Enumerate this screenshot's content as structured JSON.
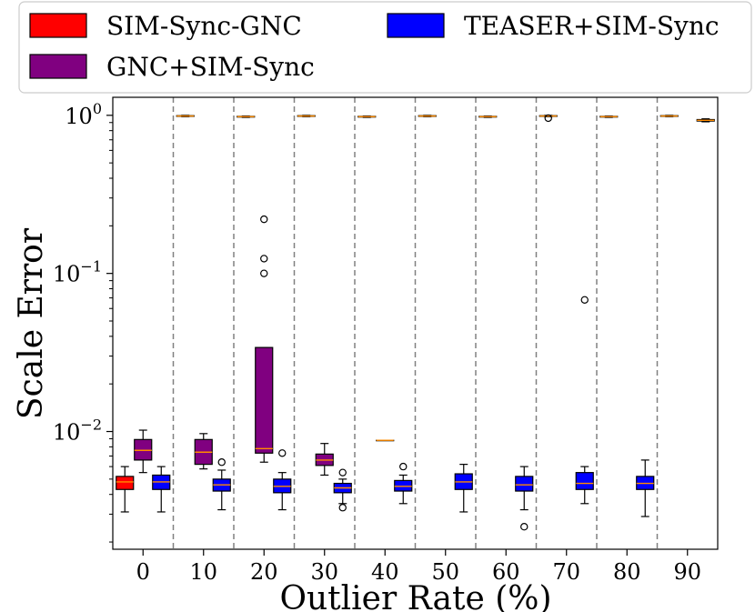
{
  "chart_data": {
    "type": "box",
    "xlabel": "Outlier Rate (%)",
    "ylabel": "Scale Error",
    "yscale": "log",
    "ylim": [
      0.0018,
      1.3
    ],
    "yticks": [
      {
        "value": 1,
        "base": "10",
        "exp": "0"
      },
      {
        "value": 0.1,
        "base": "10",
        "exp": "−1"
      },
      {
        "value": 0.01,
        "base": "10",
        "exp": "−2"
      }
    ],
    "categories": [
      "0",
      "10",
      "20",
      "30",
      "40",
      "50",
      "60",
      "70",
      "80",
      "90"
    ],
    "legend": {
      "placement": "top",
      "entries": [
        {
          "name": "SIM-Sync-GNC",
          "color": "#ff0000"
        },
        {
          "name": "GNC+SIM-Sync",
          "color": "#800080"
        },
        {
          "name": "TEASER+SIM-Sync",
          "color": "#0000ff"
        }
      ]
    },
    "median_color": "#ff8c00",
    "series": [
      {
        "name": "SIM-Sync-GNC",
        "color": "#ff0000",
        "boxes": [
          {
            "category": "0",
            "whislo": 0.0031,
            "q1": 0.0043,
            "med": 0.0048,
            "q3": 0.0052,
            "whishi": 0.006,
            "fliers": []
          },
          {
            "category": "10",
            "whislo": 0.98,
            "q1": 0.985,
            "med": 0.99,
            "q3": 0.995,
            "whishi": 1.0,
            "fliers": []
          },
          {
            "category": "20",
            "whislo": 0.97,
            "q1": 0.975,
            "med": 0.98,
            "q3": 0.985,
            "whishi": 0.99,
            "fliers": []
          },
          {
            "category": "30",
            "whislo": 0.98,
            "q1": 0.985,
            "med": 0.99,
            "q3": 0.995,
            "whishi": 1.0,
            "fliers": []
          },
          {
            "category": "40",
            "whislo": 0.97,
            "q1": 0.975,
            "med": 0.98,
            "q3": 0.985,
            "whishi": 0.99,
            "fliers": []
          },
          {
            "category": "50",
            "whislo": 0.98,
            "q1": 0.985,
            "med": 0.99,
            "q3": 0.995,
            "whishi": 1.0,
            "fliers": []
          },
          {
            "category": "60",
            "whislo": 0.97,
            "q1": 0.975,
            "med": 0.98,
            "q3": 0.985,
            "whishi": 0.99,
            "fliers": []
          },
          {
            "category": "70",
            "whislo": 0.98,
            "q1": 0.985,
            "med": 0.99,
            "q3": 0.995,
            "whishi": 1.0,
            "fliers": [
              0.96
            ]
          },
          {
            "category": "80",
            "whislo": 0.97,
            "q1": 0.975,
            "med": 0.98,
            "q3": 0.985,
            "whishi": 0.99,
            "fliers": []
          },
          {
            "category": "90",
            "whislo": 0.98,
            "q1": 0.985,
            "med": 0.99,
            "q3": 0.995,
            "whishi": 1.0,
            "fliers": []
          }
        ]
      },
      {
        "name": "GNC+SIM-Sync",
        "color": "#800080",
        "boxes": [
          {
            "category": "0",
            "whislo": 0.0055,
            "q1": 0.0066,
            "med": 0.0076,
            "q3": 0.0089,
            "whishi": 0.0102,
            "fliers": []
          },
          {
            "category": "10",
            "whislo": 0.0058,
            "q1": 0.0062,
            "med": 0.0074,
            "q3": 0.0089,
            "whishi": 0.0097,
            "fliers": []
          },
          {
            "category": "20",
            "whislo": 0.0064,
            "q1": 0.0073,
            "med": 0.0078,
            "q3": 0.034,
            "whishi": 0.034,
            "fliers": [
              0.1,
              0.124,
              0.22
            ]
          },
          {
            "category": "30",
            "whislo": 0.0053,
            "q1": 0.0061,
            "med": 0.0066,
            "q3": 0.0072,
            "whishi": 0.0084,
            "fliers": []
          },
          {
            "category": "40",
            "whislo": 0.0088,
            "q1": 0.0088,
            "med": 0.0088,
            "q3": 0.0088,
            "whishi": 0.0088,
            "fliers": []
          }
        ]
      },
      {
        "name": "TEASER+SIM-Sync",
        "color": "#0000ff",
        "boxes": [
          {
            "category": "0",
            "whislo": 0.0031,
            "q1": 0.0043,
            "med": 0.0048,
            "q3": 0.0053,
            "whishi": 0.006,
            "fliers": []
          },
          {
            "category": "10",
            "whislo": 0.0032,
            "q1": 0.0042,
            "med": 0.0046,
            "q3": 0.005,
            "whishi": 0.0057,
            "fliers": [
              0.0064
            ]
          },
          {
            "category": "20",
            "whislo": 0.0032,
            "q1": 0.0041,
            "med": 0.0045,
            "q3": 0.005,
            "whishi": 0.0055,
            "fliers": [
              0.0073
            ]
          },
          {
            "category": "30",
            "whislo": 0.0035,
            "q1": 0.0041,
            "med": 0.0044,
            "q3": 0.0047,
            "whishi": 0.005,
            "fliers": [
              0.0055,
              0.0033
            ]
          },
          {
            "category": "40",
            "whislo": 0.0035,
            "q1": 0.0042,
            "med": 0.0045,
            "q3": 0.0049,
            "whishi": 0.0053,
            "fliers": [
              0.006
            ]
          },
          {
            "category": "50",
            "whislo": 0.0031,
            "q1": 0.0043,
            "med": 0.0048,
            "q3": 0.0054,
            "whishi": 0.0062,
            "fliers": []
          },
          {
            "category": "60",
            "whislo": 0.0032,
            "q1": 0.0042,
            "med": 0.0046,
            "q3": 0.0052,
            "whishi": 0.006,
            "fliers": [
              0.0025
            ]
          },
          {
            "category": "70",
            "whislo": 0.0035,
            "q1": 0.0043,
            "med": 0.0047,
            "q3": 0.0055,
            "whishi": 0.006,
            "fliers": [
              0.068
            ]
          },
          {
            "category": "80",
            "whislo": 0.0029,
            "q1": 0.0043,
            "med": 0.0047,
            "q3": 0.0052,
            "whishi": 0.0066,
            "fliers": []
          },
          {
            "category": "90",
            "whislo": 0.91,
            "q1": 0.92,
            "med": 0.93,
            "q3": 0.94,
            "whishi": 0.95,
            "fliers": []
          }
        ]
      }
    ]
  }
}
